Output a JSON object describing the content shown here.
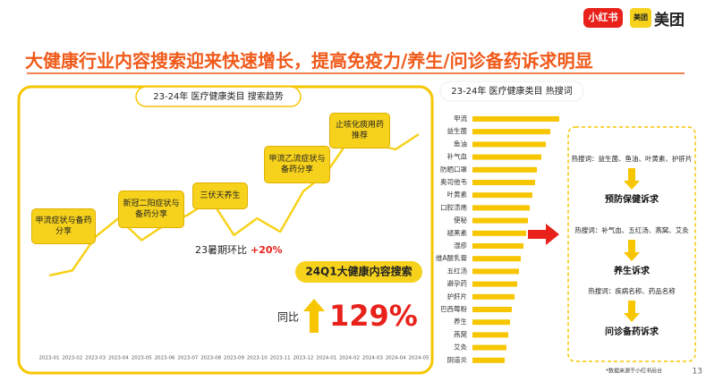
{
  "header": {
    "title": "大健康行业内容搜索迎来快速增长，提高免疫力/养生/问诊备药诉求明显",
    "logos": [
      "小红书",
      "美团",
      "美团"
    ]
  },
  "chart_data": [
    {
      "type": "line",
      "title": "23-24年 医疗健康类目 搜索趋势",
      "categories": [
        "2023-01",
        "2023-02",
        "2023-03",
        "2023-04",
        "2023-05",
        "2023-06",
        "2023-07",
        "2023-08",
        "2023-09",
        "2023-10",
        "2023-11",
        "2023-12",
        "2024-01",
        "2024-02",
        "2024-03",
        "2024-04",
        "2024-05"
      ],
      "values": [
        8,
        11,
        31,
        42,
        29,
        38,
        44,
        53,
        32,
        42,
        34,
        58,
        69,
        89,
        86,
        83,
        92
      ],
      "color": "#f7d21c",
      "annotations": [
        "甲流症状与备药分享",
        "新冠二阳症状与备药分享",
        "三伏天养生",
        "甲流乙流症状与备药分享",
        "止咳化痰用药推荐"
      ],
      "summer_note": [
        "23暑期环比",
        "+20%"
      ],
      "highlight": {
        "label": "24Q1大健康内容搜索",
        "prefix": "同比",
        "value": "129%"
      }
    },
    {
      "type": "barh",
      "title": "23-24年 医疗健康类目 热搜词",
      "categories": [
        "甲流",
        "益生菌",
        "鱼油",
        "补气血",
        "防晒口罩",
        "奥司他韦",
        "叶黄素",
        "口腔溃疡",
        "便秘",
        "褪黑素",
        "湿疹",
        "维A酸乳膏",
        "五红汤",
        "避孕药",
        "护肝片",
        "巴西莓粉",
        "养生",
        "燕窝",
        "艾灸",
        "阴道炎"
      ],
      "values": [
        97,
        87,
        82,
        77,
        72,
        70,
        67,
        64,
        62,
        60,
        57,
        54,
        52,
        50,
        47,
        44,
        42,
        40,
        38,
        36
      ],
      "color": "#f7c600"
    }
  ],
  "right_panel": {
    "groups": [
      {
        "keywords": "热搜词：益生菌、鱼油、叶黄素、护肝片",
        "need": "预防保健诉求"
      },
      {
        "keywords": "热搜词：补气血、五红汤、燕窝、艾灸",
        "need": "养生诉求"
      },
      {
        "keywords": "热搜词：疾病名称、药品名称",
        "need": "问诊备药诉求"
      }
    ]
  },
  "footer": {
    "source": "*数据来源于小红书后台",
    "page": "13"
  }
}
